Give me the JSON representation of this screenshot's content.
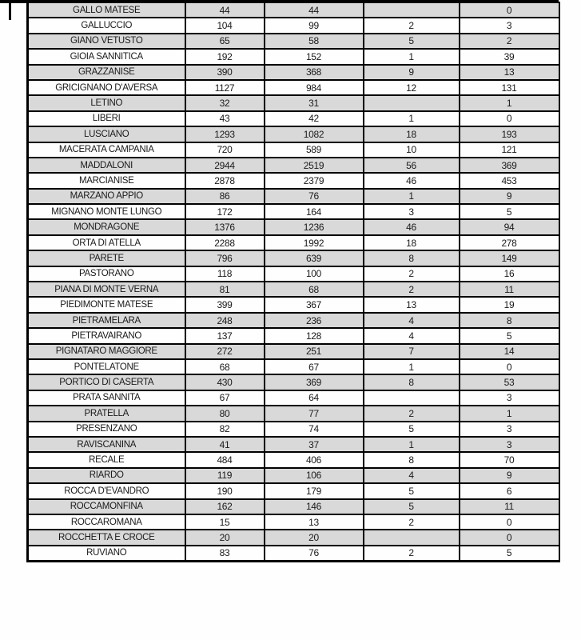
{
  "page": {
    "background": "#ffffff"
  },
  "table": {
    "border_color": "#000000",
    "shade_color": "#d9d9d9",
    "text_color": "#1a1a1a",
    "columns": 5,
    "rows": [
      {
        "name": "GALLO MATESE",
        "values": [
          "44",
          "44",
          "",
          "0"
        ]
      },
      {
        "name": "GALLUCCIO",
        "values": [
          "104",
          "99",
          "2",
          "3"
        ]
      },
      {
        "name": "GIANO VETUSTO",
        "values": [
          "65",
          "58",
          "5",
          "2"
        ]
      },
      {
        "name": "GIOIA SANNITICA",
        "values": [
          "192",
          "152",
          "1",
          "39"
        ]
      },
      {
        "name": "GRAZZANISE",
        "values": [
          "390",
          "368",
          "9",
          "13"
        ]
      },
      {
        "name": "GRICIGNANO D'AVERSA",
        "values": [
          "1127",
          "984",
          "12",
          "131"
        ]
      },
      {
        "name": "LETINO",
        "values": [
          "32",
          "31",
          "",
          "1"
        ]
      },
      {
        "name": "LIBERI",
        "values": [
          "43",
          "42",
          "1",
          "0"
        ]
      },
      {
        "name": "LUSCIANO",
        "values": [
          "1293",
          "1082",
          "18",
          "193"
        ]
      },
      {
        "name": "MACERATA CAMPANIA",
        "values": [
          "720",
          "589",
          "10",
          "121"
        ]
      },
      {
        "name": "MADDALONI",
        "values": [
          "2944",
          "2519",
          "56",
          "369"
        ]
      },
      {
        "name": "MARCIANISE",
        "values": [
          "2878",
          "2379",
          "46",
          "453"
        ]
      },
      {
        "name": "MARZANO APPIO",
        "values": [
          "86",
          "76",
          "1",
          "9"
        ]
      },
      {
        "name": "MIGNANO MONTE LUNGO",
        "values": [
          "172",
          "164",
          "3",
          "5"
        ]
      },
      {
        "name": "MONDRAGONE",
        "values": [
          "1376",
          "1236",
          "46",
          "94"
        ]
      },
      {
        "name": "ORTA DI ATELLA",
        "values": [
          "2288",
          "1992",
          "18",
          "278"
        ]
      },
      {
        "name": "PARETE",
        "values": [
          "796",
          "639",
          "8",
          "149"
        ]
      },
      {
        "name": "PASTORANO",
        "values": [
          "118",
          "100",
          "2",
          "16"
        ]
      },
      {
        "name": "PIANA DI MONTE VERNA",
        "values": [
          "81",
          "68",
          "2",
          "11"
        ]
      },
      {
        "name": "PIEDIMONTE MATESE",
        "values": [
          "399",
          "367",
          "13",
          "19"
        ]
      },
      {
        "name": "PIETRAMELARA",
        "values": [
          "248",
          "236",
          "4",
          "8"
        ]
      },
      {
        "name": "PIETRAVAIRANO",
        "values": [
          "137",
          "128",
          "4",
          "5"
        ]
      },
      {
        "name": "PIGNATARO MAGGIORE",
        "values": [
          "272",
          "251",
          "7",
          "14"
        ]
      },
      {
        "name": "PONTELATONE",
        "values": [
          "68",
          "67",
          "1",
          "0"
        ]
      },
      {
        "name": "PORTICO DI CASERTA",
        "values": [
          "430",
          "369",
          "8",
          "53"
        ]
      },
      {
        "name": "PRATA SANNITA",
        "values": [
          "67",
          "64",
          "",
          "3"
        ]
      },
      {
        "name": "PRATELLA",
        "values": [
          "80",
          "77",
          "2",
          "1"
        ]
      },
      {
        "name": "PRESENZANO",
        "values": [
          "82",
          "74",
          "5",
          "3"
        ]
      },
      {
        "name": "RAVISCANINA",
        "values": [
          "41",
          "37",
          "1",
          "3"
        ]
      },
      {
        "name": "RECALE",
        "values": [
          "484",
          "406",
          "8",
          "70"
        ]
      },
      {
        "name": "RIARDO",
        "values": [
          "119",
          "106",
          "4",
          "9"
        ]
      },
      {
        "name": "ROCCA D'EVANDRO",
        "values": [
          "190",
          "179",
          "5",
          "6"
        ]
      },
      {
        "name": "ROCCAMONFINA",
        "values": [
          "162",
          "146",
          "5",
          "11"
        ]
      },
      {
        "name": "ROCCAROMANA",
        "values": [
          "15",
          "13",
          "2",
          "0"
        ]
      },
      {
        "name": "ROCCHETTA E CROCE",
        "values": [
          "20",
          "20",
          "",
          "0"
        ]
      },
      {
        "name": "RUVIANO",
        "values": [
          "83",
          "76",
          "2",
          "5"
        ]
      }
    ]
  }
}
